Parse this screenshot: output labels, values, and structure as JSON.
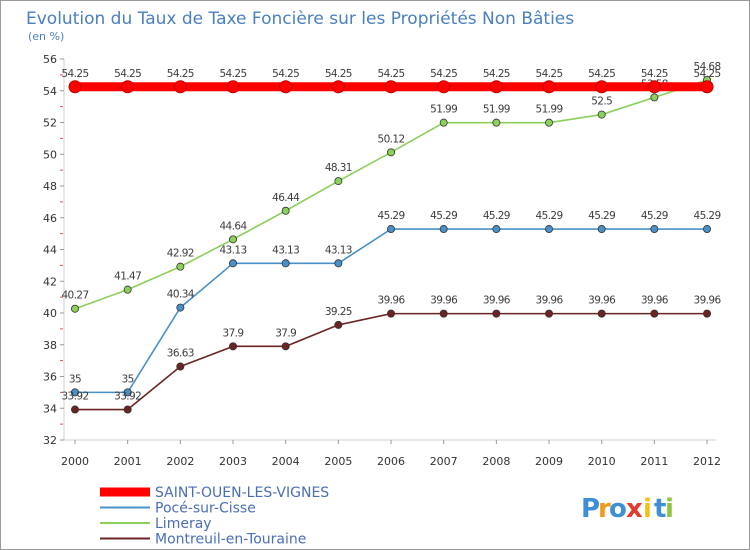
{
  "chart_data": {
    "type": "line",
    "title": "Evolution du Taux de Taxe Foncière sur les Propriétés Non Bâties",
    "subtitle": "(en %)",
    "xlabel": "",
    "ylabel": "",
    "x": [
      "2000",
      "2001",
      "2002",
      "2003",
      "2004",
      "2005",
      "2006",
      "2007",
      "2008",
      "2009",
      "2010",
      "2011",
      "2012"
    ],
    "ylim": [
      32,
      56
    ],
    "yticks": [
      32,
      34,
      36,
      38,
      40,
      42,
      44,
      46,
      48,
      50,
      52,
      54,
      56
    ],
    "grid": false,
    "legend_position": "bottom-left",
    "series": [
      {
        "name": "SAINT-OUEN-LES-VIGNES",
        "color": "#ff0000",
        "values": [
          54.25,
          54.25,
          54.25,
          54.25,
          54.25,
          54.25,
          54.25,
          54.25,
          54.25,
          54.25,
          54.25,
          54.25,
          54.25
        ],
        "labels": [
          "54.25",
          "54.25",
          "54.25",
          "54.25",
          "54.25",
          "54.25",
          "54.25",
          "54.25",
          "54.25",
          "54.25",
          "54.25",
          "54.25",
          "54.25"
        ]
      },
      {
        "name": "Pocé-sur-Cisse",
        "color": "#4a90c8",
        "values": [
          35,
          35,
          40.34,
          43.13,
          43.13,
          43.13,
          45.29,
          45.29,
          45.29,
          45.29,
          45.29,
          45.29,
          45.29
        ],
        "labels": [
          "35",
          "35",
          "40.34",
          "43.13",
          "43.13",
          "43.13",
          "45.29",
          "45.29",
          "45.29",
          "45.29",
          "45.29",
          "45.29",
          "45.29"
        ]
      },
      {
        "name": "Limeray",
        "color": "#8ccf5a",
        "values": [
          40.27,
          41.47,
          42.92,
          44.64,
          46.44,
          48.31,
          50.12,
          51.99,
          51.99,
          51.99,
          52.5,
          53.58,
          54.68
        ],
        "labels": [
          "40.27",
          "41.47",
          "42.92",
          "44.64",
          "46.44",
          "48.31",
          "50.12",
          "51.99",
          "51.99",
          "51.99",
          "52.5",
          "53.58",
          "54.68"
        ]
      },
      {
        "name": "Montreuil-en-Touraine",
        "color": "#6b2323",
        "values": [
          33.92,
          33.92,
          36.63,
          37.9,
          37.9,
          39.25,
          39.96,
          39.96,
          39.96,
          39.96,
          39.96,
          39.96,
          39.96
        ],
        "labels": [
          "33.92",
          "33.92",
          "36.63",
          "37.9",
          "37.9",
          "39.25",
          "39.96",
          "39.96",
          "39.96",
          "39.96",
          "39.96",
          "39.96",
          "39.96"
        ]
      }
    ]
  },
  "logo": {
    "letters": [
      "P",
      "r",
      "o",
      "x",
      "i",
      "t",
      "i"
    ],
    "colors": [
      "#3d8fd6",
      "#f29a1a",
      "#3d8fd6",
      "#e23b2c",
      "#f2c21a",
      "#3d8fd6",
      "#8cc63f"
    ]
  }
}
